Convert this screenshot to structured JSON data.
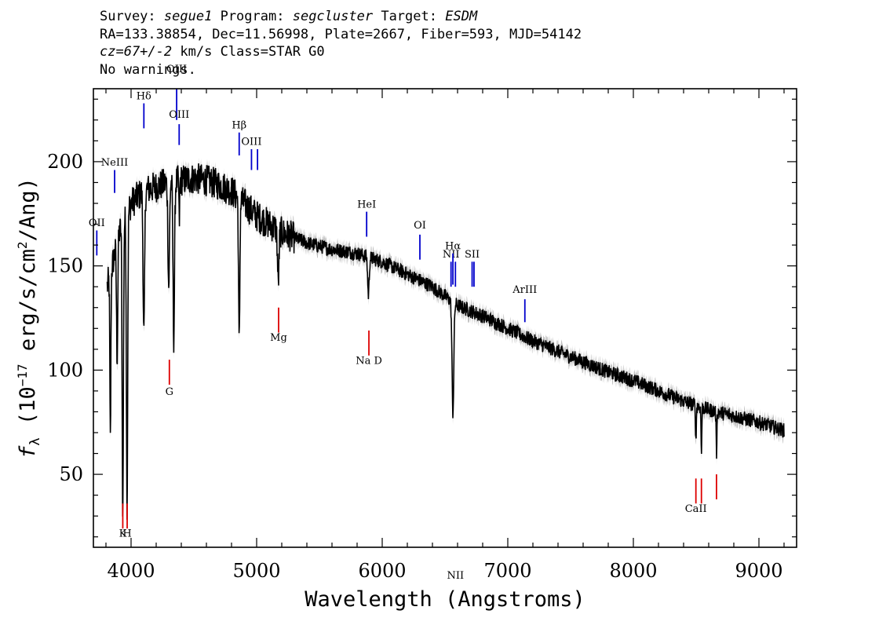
{
  "header": {
    "survey_label": "Survey:",
    "survey": "segue1",
    "program_label": "Program:",
    "program": "segcluster",
    "target_label": "Target:",
    "target": "ESDM",
    "line2": "RA=133.38854, Dec=11.56998, Plate=2667, Fiber=593, MJD=54142",
    "cz": "cz=67+/-2",
    "cz_unit": "km/s",
    "class_text": "Class=STAR G0",
    "warnings": "No warnings."
  },
  "chart_data": {
    "type": "line",
    "xlabel": "Wavelength (Angstroms)",
    "ylabel": "f_λ (10^-17 erg/s/cm^2/Ang)",
    "xlim": [
      3700,
      9300
    ],
    "ylim": [
      15,
      235
    ],
    "x_ticks": [
      4000,
      5000,
      6000,
      7000,
      8000,
      9000
    ],
    "y_ticks": [
      50,
      100,
      150,
      200
    ],
    "x_minor_step": 200,
    "y_minor_step": 10,
    "continuum": [
      [
        3810,
        140
      ],
      [
        3850,
        150
      ],
      [
        3900,
        165
      ],
      [
        4000,
        180
      ],
      [
        4100,
        186
      ],
      [
        4200,
        188
      ],
      [
        4300,
        190
      ],
      [
        4400,
        191
      ],
      [
        4500,
        192
      ],
      [
        4600,
        191
      ],
      [
        4700,
        189
      ],
      [
        4800,
        186
      ],
      [
        4900,
        180
      ],
      [
        5000,
        174
      ],
      [
        5100,
        170
      ],
      [
        5200,
        166
      ],
      [
        5400,
        161
      ],
      [
        5600,
        158
      ],
      [
        5800,
        156
      ],
      [
        6000,
        152
      ],
      [
        6200,
        146
      ],
      [
        6400,
        140
      ],
      [
        6600,
        131
      ],
      [
        6800,
        126
      ],
      [
        7000,
        120
      ],
      [
        7200,
        114
      ],
      [
        7400,
        109
      ],
      [
        7600,
        104
      ],
      [
        7800,
        99
      ],
      [
        8000,
        95
      ],
      [
        8200,
        90
      ],
      [
        8400,
        85
      ],
      [
        8600,
        81
      ],
      [
        8800,
        78
      ],
      [
        9000,
        75
      ],
      [
        9200,
        71
      ]
    ],
    "absorption": [
      [
        3835,
        80,
        4
      ],
      [
        3889,
        55,
        5
      ],
      [
        3934,
        140,
        5
      ],
      [
        3968,
        140,
        5
      ],
      [
        4102,
        70,
        6
      ],
      [
        4300,
        50,
        6
      ],
      [
        4340,
        75,
        6
      ],
      [
        4384,
        20,
        3
      ],
      [
        4861,
        70,
        5
      ],
      [
        5172,
        25,
        6
      ],
      [
        5890,
        18,
        6
      ],
      [
        6563,
        53,
        7
      ],
      [
        8498,
        18,
        3
      ],
      [
        8542,
        22,
        3
      ],
      [
        8662,
        20,
        3
      ]
    ],
    "noise_amplitude": 3.5,
    "emission_lines": [
      {
        "label": "Hδ",
        "wave": 4102,
        "y1": 228,
        "y2": 216,
        "label_y": 230
      },
      {
        "label": "OIII",
        "wave": 4363,
        "y1": 235,
        "y2": 220,
        "label_y": 243
      },
      {
        "label": "OIII",
        "wave": 4383,
        "y1": 218,
        "y2": 208,
        "label_y": 221
      },
      {
        "label": "Hβ",
        "wave": 4861,
        "y1": 214,
        "y2": 203,
        "label_y": 216
      },
      {
        "label": "OIII",
        "wave": 4959,
        "y1": 206,
        "y2": 196,
        "label_y": 208
      },
      {
        "label": "",
        "wave": 5007,
        "y1": 206,
        "y2": 196,
        "label_y": 0
      },
      {
        "label": "NeIII",
        "wave": 3869,
        "y1": 196,
        "y2": 185,
        "label_y": 198
      },
      {
        "label": "HeI",
        "wave": 5876,
        "y1": 176,
        "y2": 164,
        "label_y": 178
      },
      {
        "label": "OI",
        "wave": 6300,
        "y1": 165,
        "y2": 153,
        "label_y": 168
      },
      {
        "label": "NII",
        "wave": 6548,
        "y1": 152,
        "y2": 140,
        "label_y": 154
      },
      {
        "label": "Hα",
        "wave": 6563,
        "y1": 156,
        "y2": 141,
        "label_y": 158
      },
      {
        "label": "NII",
        "wave": 6583,
        "y1": 152,
        "y2": 140,
        "label_y": 0
      },
      {
        "label": "SII",
        "wave": 6716,
        "y1": 152,
        "y2": 140,
        "label_y": 154
      },
      {
        "label": "",
        "wave": 6731,
        "y1": 152,
        "y2": 140,
        "label_y": 0
      },
      {
        "label": "ArIII",
        "wave": 7136,
        "y1": 134,
        "y2": 123,
        "label_y": 137
      },
      {
        "label": "OII",
        "wave": 3727,
        "y1": 167,
        "y2": 155,
        "label_y": 169
      }
    ],
    "absorption_lines": [
      {
        "label": "K",
        "wave": 3934,
        "y1": 36,
        "y2": 24,
        "label_y": 20
      },
      {
        "label": "H",
        "wave": 3969,
        "y1": 36,
        "y2": 24,
        "label_y": 20
      },
      {
        "label": "G",
        "wave": 4305,
        "y1": 105,
        "y2": 93,
        "label_y": 88
      },
      {
        "label": "Mg",
        "wave": 5175,
        "y1": 130,
        "y2": 118,
        "label_y": 114
      },
      {
        "label": "Na D",
        "wave": 5894,
        "y1": 119,
        "y2": 107,
        "label_y": 103
      },
      {
        "label": "CaII",
        "wave": 8498,
        "y1": 48,
        "y2": 36,
        "label_y": 32
      },
      {
        "label": "",
        "wave": 8542,
        "y1": 48,
        "y2": 36,
        "label_y": 0
      },
      {
        "label": "",
        "wave": 8662,
        "y1": 50,
        "y2": 38,
        "label_y": 0
      }
    ],
    "colors": {
      "flux": "#000000",
      "error": "#bdbdbd",
      "emission": "#0000cc",
      "absorption": "#dd0000",
      "axes": "#000000"
    }
  }
}
